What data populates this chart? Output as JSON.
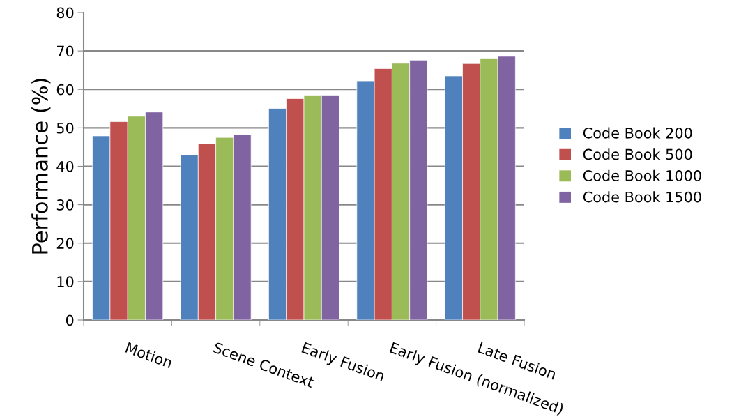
{
  "chart_data": {
    "type": "bar",
    "ylabel": "Performance (%)",
    "categories": [
      "Motion",
      "Scene Context",
      "Early Fusion",
      "Early Fusion (normalized)",
      "Late Fusion"
    ],
    "series": [
      {
        "name": "Code Book 200",
        "color": "#4f81bd",
        "values": [
          47.9,
          43.0,
          55.0,
          62.2,
          63.5
        ]
      },
      {
        "name": "Code Book 500",
        "color": "#c0504d",
        "values": [
          51.6,
          45.9,
          57.6,
          65.4,
          66.7
        ]
      },
      {
        "name": "Code Book 1000",
        "color": "#9bbb59",
        "values": [
          53.0,
          47.5,
          58.5,
          66.8,
          68.1
        ]
      },
      {
        "name": "Code Book 1500",
        "color": "#8064a2",
        "values": [
          54.1,
          48.2,
          58.5,
          67.6,
          68.6
        ]
      }
    ],
    "ylim": [
      0,
      80
    ],
    "yticks": [
      0,
      10,
      20,
      30,
      40,
      50,
      60,
      70,
      80
    ],
    "grid": "y",
    "legend": "right"
  }
}
